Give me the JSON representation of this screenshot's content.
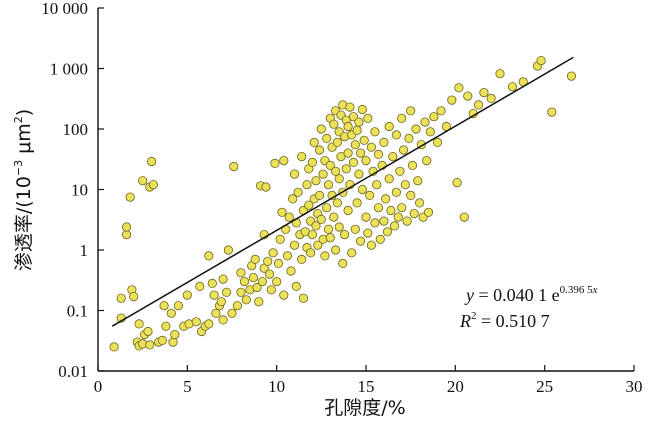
{
  "chart_data": {
    "type": "scatter",
    "xlabel": "孔隙度/%",
    "ylabel_main": "渗透率/(10",
    "ylabel_sup": "−3",
    "ylabel_unit": " μm",
    "ylabel_sup2": "2",
    "ylabel_close": ")",
    "xlim": [
      0,
      30
    ],
    "ylim": [
      0.01,
      10000
    ],
    "yscale": "log",
    "x_ticks": [
      0,
      5,
      10,
      15,
      20,
      25,
      30
    ],
    "x_tick_labels": [
      "0",
      "5",
      "10",
      "15",
      "20",
      "25",
      "30"
    ],
    "y_ticks": [
      0.01,
      0.1,
      1,
      10,
      100,
      1000,
      10000
    ],
    "y_tick_labels": [
      "0.01",
      "0.1",
      "1",
      "10",
      "100",
      "1 000",
      "10 000"
    ],
    "marker_color": "#ece25a",
    "marker_edge": "#6b6420",
    "line_color": "#111111",
    "trendline": {
      "a": 0.0401,
      "b": 0.3965,
      "x_range": [
        0.8,
        26.6
      ]
    },
    "equation_label": {
      "y_var": "y",
      "eq_main": " = 0.040 1 e",
      "eq_exp": "0.396 5",
      "eq_exp_var": "x",
      "r2_var": "R",
      "r2_sup": "2",
      "r2_value": " = 0.510 7"
    },
    "points": [
      [
        0.9,
        0.025
      ],
      [
        1.3,
        0.075
      ],
      [
        1.3,
        0.16
      ],
      [
        1.6,
        1.8
      ],
      [
        1.6,
        2.4
      ],
      [
        1.8,
        7.5
      ],
      [
        1.9,
        0.22
      ],
      [
        2.0,
        0.17
      ],
      [
        2.2,
        0.03
      ],
      [
        2.3,
        0.026
      ],
      [
        2.3,
        0.06
      ],
      [
        2.5,
        0.028
      ],
      [
        2.5,
        14
      ],
      [
        2.6,
        0.04
      ],
      [
        2.8,
        0.045
      ],
      [
        2.9,
        11
      ],
      [
        2.9,
        0.027
      ],
      [
        3.0,
        29
      ],
      [
        3.1,
        12
      ],
      [
        3.4,
        0.03
      ],
      [
        3.6,
        0.032
      ],
      [
        3.7,
        0.12
      ],
      [
        3.8,
        0.055
      ],
      [
        4.1,
        0.09
      ],
      [
        4.2,
        0.03
      ],
      [
        4.3,
        0.04
      ],
      [
        4.5,
        0.12
      ],
      [
        4.8,
        0.055
      ],
      [
        5.0,
        0.18
      ],
      [
        5.1,
        0.06
      ],
      [
        5.5,
        0.065
      ],
      [
        5.7,
        0.25
      ],
      [
        5.8,
        0.045
      ],
      [
        6.0,
        0.055
      ],
      [
        6.2,
        0.8
      ],
      [
        6.2,
        0.06
      ],
      [
        6.4,
        0.28
      ],
      [
        6.5,
        0.18
      ],
      [
        6.6,
        0.09
      ],
      [
        6.8,
        0.12
      ],
      [
        6.9,
        0.14
      ],
      [
        7.0,
        0.33
      ],
      [
        7.0,
        0.07
      ],
      [
        7.2,
        0.2
      ],
      [
        7.3,
        1.0
      ],
      [
        7.5,
        0.09
      ],
      [
        7.6,
        24
      ],
      [
        7.8,
        0.12
      ],
      [
        8.0,
        0.2
      ],
      [
        8.0,
        0.42
      ],
      [
        8.2,
        0.3
      ],
      [
        8.3,
        0.15
      ],
      [
        8.5,
        0.22
      ],
      [
        8.6,
        0.55
      ],
      [
        8.7,
        0.35
      ],
      [
        8.8,
        0.7
      ],
      [
        8.9,
        0.24
      ],
      [
        9.0,
        0.14
      ],
      [
        9.1,
        11.5
      ],
      [
        9.2,
        0.3
      ],
      [
        9.3,
        1.8
      ],
      [
        9.3,
        0.5
      ],
      [
        9.4,
        11
      ],
      [
        9.5,
        0.65
      ],
      [
        9.6,
        0.4
      ],
      [
        9.7,
        0.22
      ],
      [
        9.8,
        0.9
      ],
      [
        9.9,
        27
      ],
      [
        10.0,
        0.3
      ],
      [
        10.1,
        0.6
      ],
      [
        10.2,
        1.5
      ],
      [
        10.3,
        4.2
      ],
      [
        10.4,
        30
      ],
      [
        10.4,
        0.18
      ],
      [
        10.5,
        2.2
      ],
      [
        10.6,
        0.8
      ],
      [
        10.7,
        3.5
      ],
      [
        10.8,
        0.45
      ],
      [
        10.9,
        7
      ],
      [
        11.0,
        1.2
      ],
      [
        11.0,
        18
      ],
      [
        11.1,
        2.8
      ],
      [
        11.1,
        0.25
      ],
      [
        11.2,
        9
      ],
      [
        11.3,
        1.8
      ],
      [
        11.4,
        35
      ],
      [
        11.4,
        0.7
      ],
      [
        11.5,
        4.5
      ],
      [
        11.5,
        0.16
      ],
      [
        11.6,
        2.0
      ],
      [
        11.7,
        12
      ],
      [
        11.7,
        1.1
      ],
      [
        11.8,
        5.5
      ],
      [
        11.8,
        22
      ],
      [
        11.9,
        3.0
      ],
      [
        11.9,
        0.9
      ],
      [
        12.0,
        1.8
      ],
      [
        12.0,
        28
      ],
      [
        12.1,
        7
      ],
      [
        12.1,
        60
      ],
      [
        12.2,
        2.5
      ],
      [
        12.2,
        14
      ],
      [
        12.3,
        4
      ],
      [
        12.3,
        1.2
      ],
      [
        12.4,
        45
      ],
      [
        12.4,
        8
      ],
      [
        12.5,
        100
      ],
      [
        12.5,
        3.2
      ],
      [
        12.6,
        18
      ],
      [
        12.6,
        1.5
      ],
      [
        12.7,
        30
      ],
      [
        12.7,
        0.8
      ],
      [
        12.8,
        70
      ],
      [
        12.8,
        5
      ],
      [
        12.9,
        12
      ],
      [
        12.9,
        2.2
      ],
      [
        13.0,
        150
      ],
      [
        13.0,
        25
      ],
      [
        13.0,
        1.6
      ],
      [
        13.1,
        8
      ],
      [
        13.1,
        50
      ],
      [
        13.2,
        120
      ],
      [
        13.2,
        3.5
      ],
      [
        13.3,
        20
      ],
      [
        13.3,
        200
      ],
      [
        13.3,
        1.0
      ],
      [
        13.4,
        60
      ],
      [
        13.4,
        6
      ],
      [
        13.5,
        90
      ],
      [
        13.5,
        15
      ],
      [
        13.5,
        2.4
      ],
      [
        13.6,
        170
      ],
      [
        13.6,
        35
      ],
      [
        13.7,
        250
      ],
      [
        13.7,
        9
      ],
      [
        13.7,
        0.6
      ],
      [
        13.8,
        75
      ],
      [
        13.8,
        1.8
      ],
      [
        13.9,
        140
      ],
      [
        13.9,
        22
      ],
      [
        14.0,
        110
      ],
      [
        14.0,
        4.5
      ],
      [
        14.0,
        40
      ],
      [
        14.1,
        230
      ],
      [
        14.1,
        12
      ],
      [
        14.2,
        80
      ],
      [
        14.2,
        0.9
      ],
      [
        14.3,
        160
      ],
      [
        14.3,
        28
      ],
      [
        14.4,
        55
      ],
      [
        14.4,
        2.2
      ],
      [
        14.5,
        95
      ],
      [
        14.5,
        6
      ],
      [
        14.6,
        130
      ],
      [
        14.6,
        18
      ],
      [
        14.7,
        40
      ],
      [
        14.7,
        1.4
      ],
      [
        14.8,
        210
      ],
      [
        14.8,
        10
      ],
      [
        14.9,
        65
      ],
      [
        15.0,
        3.5
      ],
      [
        15.0,
        30
      ],
      [
        15.1,
        150
      ],
      [
        15.1,
        1.9
      ],
      [
        15.2,
        8
      ],
      [
        15.3,
        50
      ],
      [
        15.3,
        1.2
      ],
      [
        15.4,
        20
      ],
      [
        15.5,
        90
      ],
      [
        15.5,
        2.8
      ],
      [
        15.6,
        12
      ],
      [
        15.7,
        5
      ],
      [
        15.7,
        38
      ],
      [
        15.8,
        1.5
      ],
      [
        15.9,
        25
      ],
      [
        16.0,
        3
      ],
      [
        16.0,
        60
      ],
      [
        16.1,
        7
      ],
      [
        16.2,
        2.0
      ],
      [
        16.3,
        15
      ],
      [
        16.3,
        110
      ],
      [
        16.4,
        4.5
      ],
      [
        16.5,
        35
      ],
      [
        16.6,
        2.5
      ],
      [
        16.7,
        80
      ],
      [
        16.7,
        9
      ],
      [
        16.8,
        3.5
      ],
      [
        16.9,
        20
      ],
      [
        17.0,
        150
      ],
      [
        17.0,
        5
      ],
      [
        17.1,
        45
      ],
      [
        17.2,
        12
      ],
      [
        17.3,
        3
      ],
      [
        17.4,
        70
      ],
      [
        17.5,
        8
      ],
      [
        17.5,
        200
      ],
      [
        17.6,
        25
      ],
      [
        17.7,
        4
      ],
      [
        17.8,
        100
      ],
      [
        17.9,
        14
      ],
      [
        18.0,
        6
      ],
      [
        18.1,
        55
      ],
      [
        18.2,
        3.5
      ],
      [
        18.3,
        130
      ],
      [
        18.4,
        30
      ],
      [
        18.5,
        4.2
      ],
      [
        18.6,
        90
      ],
      [
        18.8,
        160
      ],
      [
        19.0,
        60
      ],
      [
        19.2,
        200
      ],
      [
        19.5,
        110
      ],
      [
        19.8,
        300
      ],
      [
        20.1,
        13
      ],
      [
        20.2,
        480
      ],
      [
        20.5,
        3.5
      ],
      [
        20.7,
        350
      ],
      [
        21.0,
        180
      ],
      [
        21.3,
        250
      ],
      [
        21.6,
        400
      ],
      [
        22.0,
        320
      ],
      [
        22.5,
        820
      ],
      [
        23.2,
        500
      ],
      [
        23.8,
        600
      ],
      [
        24.6,
        1100
      ],
      [
        24.8,
        1350
      ],
      [
        25.4,
        190
      ],
      [
        26.5,
        750
      ]
    ]
  }
}
